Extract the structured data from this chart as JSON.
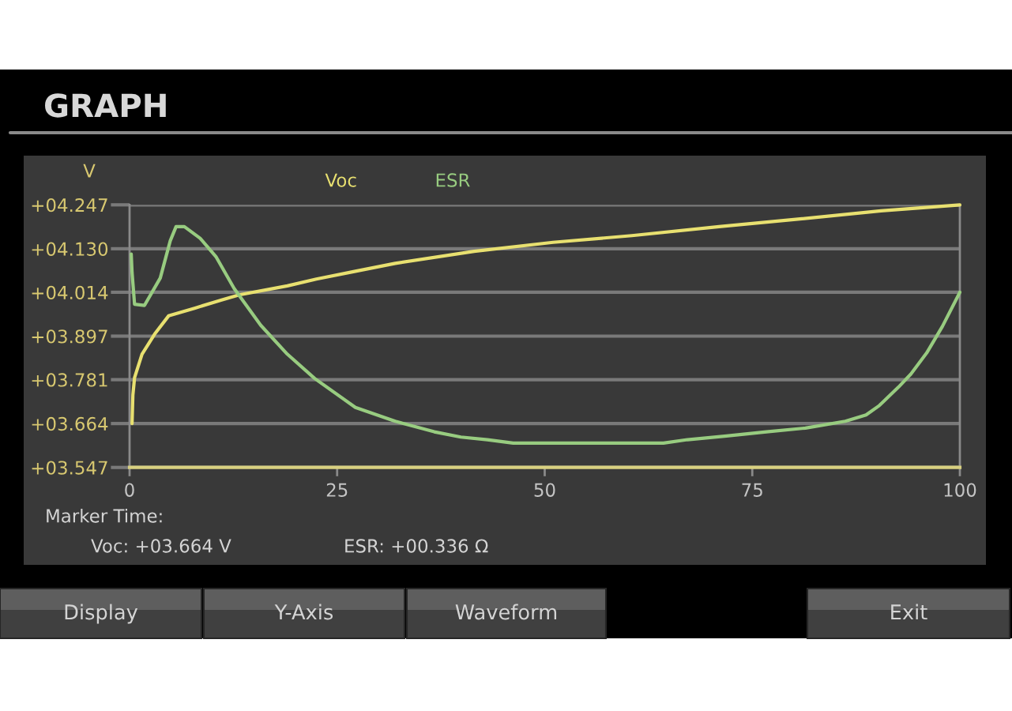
{
  "chart_data": {
    "type": "line",
    "title": "GRAPH",
    "ylabel": "V",
    "xlim": [
      0,
      100
    ],
    "xticks": [
      0,
      25,
      50,
      75,
      100
    ],
    "ylim": [
      3.547,
      4.247
    ],
    "yticks": [
      {
        "value": 3.547,
        "label": "+03.547"
      },
      {
        "value": 3.664,
        "label": "+03.664"
      },
      {
        "value": 3.781,
        "label": "+03.781"
      },
      {
        "value": 3.897,
        "label": "+03.897"
      },
      {
        "value": 4.014,
        "label": "+04.014"
      },
      {
        "value": 4.13,
        "label": "+04.130"
      },
      {
        "value": 4.247,
        "label": "+04.247"
      }
    ],
    "grid": "y",
    "legend": "top",
    "series": [
      {
        "name": "Voc",
        "color": "#e8e070",
        "x": [
          0.3,
          0.4,
          0.6,
          1.5,
          3.1,
          4.7,
          7.9,
          11.0,
          13.2,
          19.0,
          22.5,
          27.2,
          32.0,
          41.5,
          51.0,
          60.5,
          71.0,
          81.0,
          90.5,
          100
        ],
        "values": [
          3.664,
          3.74,
          3.786,
          3.849,
          3.905,
          3.951,
          3.972,
          3.993,
          4.007,
          4.031,
          4.049,
          4.07,
          4.091,
          4.123,
          4.147,
          4.165,
          4.189,
          4.21,
          4.231,
          4.247
        ]
      },
      {
        "name": "ESR",
        "color": "#98cc80",
        "x": [
          0.2,
          0.3,
          0.6,
          1.8,
          3.7,
          4.9,
          5.6,
          6.6,
          8.5,
          10.4,
          12.6,
          15.8,
          19.0,
          22.3,
          27.2,
          32.0,
          36.7,
          39.9,
          43.1,
          46.2,
          55.0,
          64.3,
          67.2,
          71.9,
          76.7,
          81.4,
          86.2,
          88.7,
          90.3,
          92.6,
          94.1,
          96.0,
          97.9,
          100
        ],
        "values": [
          4.116,
          4.067,
          3.982,
          3.979,
          4.052,
          4.151,
          4.189,
          4.189,
          4.158,
          4.109,
          4.024,
          3.926,
          3.849,
          3.784,
          3.707,
          3.67,
          3.642,
          3.628,
          3.621,
          3.612,
          3.612,
          3.612,
          3.621,
          3.631,
          3.642,
          3.652,
          3.67,
          3.687,
          3.712,
          3.761,
          3.796,
          3.852,
          3.923,
          4.014
        ]
      }
    ],
    "annotations": [
      "Marker Time:",
      "Voc: +03.664 V",
      "ESR: +00.336 Ω",
      "Display",
      "Y-Axis",
      "Waveform",
      "Exit"
    ]
  }
}
